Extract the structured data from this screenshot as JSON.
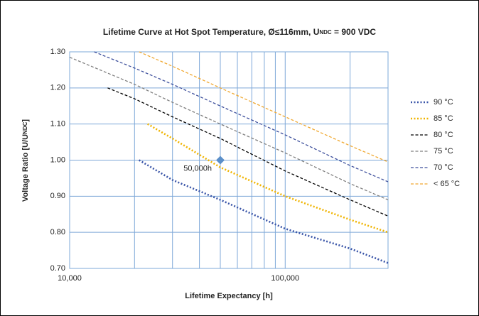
{
  "chart_data": {
    "type": "line",
    "title": {
      "text": "Lifetime Curve at Hot Spot Temperature, Ø≤116mm, U",
      "sub": "NDC",
      "tail": " = 900 VDC"
    },
    "y_label": {
      "text": "Voltage Ratio [U/U",
      "sub": "NDC",
      "tail": "]"
    },
    "x_label": "Lifetime Expectancy  [h]",
    "xlog": true,
    "xlim": [
      10000,
      300000
    ],
    "xticks": [
      {
        "value": 10000,
        "label": "10,000"
      },
      {
        "value": 100000,
        "label": "100,000"
      }
    ],
    "xgrid": [
      20000,
      30000,
      40000,
      50000,
      60000,
      70000,
      80000,
      90000,
      200000
    ],
    "ylim": [
      0.7,
      1.3
    ],
    "yticks": [
      {
        "value": 0.7,
        "label": "0.70"
      },
      {
        "value": 0.8,
        "label": "0.80"
      },
      {
        "value": 0.9,
        "label": "0.90"
      },
      {
        "value": 1.0,
        "label": "1.00"
      },
      {
        "value": 1.1,
        "label": "1.10"
      },
      {
        "value": 1.2,
        "label": "1.20"
      },
      {
        "value": 1.3,
        "label": "1.30"
      }
    ],
    "grid": true,
    "legend": "right",
    "series": [
      {
        "name": "90 °C",
        "color": "#3a55a8",
        "dash": "dotted",
        "x": [
          21000,
          30000,
          50000,
          100000,
          200000,
          300000
        ],
        "values": [
          1.0,
          0.945,
          0.89,
          0.81,
          0.755,
          0.715
        ]
      },
      {
        "name": "85 °C",
        "color": "#f0b400",
        "dash": "dotted",
        "x": [
          23000,
          30000,
          50000,
          100000,
          200000,
          300000
        ],
        "values": [
          1.1,
          1.06,
          0.98,
          0.9,
          0.835,
          0.8
        ]
      },
      {
        "name": "80 °C",
        "color": "#000000",
        "dash": "dashed",
        "x": [
          15000,
          20000,
          30000,
          50000,
          100000,
          200000,
          300000
        ],
        "values": [
          1.2,
          1.17,
          1.12,
          1.06,
          0.97,
          0.89,
          0.845
        ]
      },
      {
        "name": "75 °C",
        "color": "#808080",
        "dash": "dashed",
        "x": [
          10000,
          20000,
          30000,
          50000,
          100000,
          200000,
          300000
        ],
        "values": [
          1.285,
          1.21,
          1.16,
          1.1,
          1.02,
          0.935,
          0.89
        ]
      },
      {
        "name": "70 °C",
        "color": "#3d4f9c",
        "dash": "dashed",
        "x": [
          13000,
          20000,
          30000,
          50000,
          100000,
          200000,
          300000
        ],
        "values": [
          1.3,
          1.255,
          1.21,
          1.15,
          1.07,
          0.985,
          0.94
        ]
      },
      {
        "name": "< 65 °C",
        "color": "#f0a830",
        "dash": "dashed",
        "x": [
          21000,
          30000,
          50000,
          100000,
          200000,
          300000
        ],
        "values": [
          1.3,
          1.26,
          1.2,
          1.12,
          1.04,
          0.995
        ]
      }
    ],
    "annotation": {
      "text": "50,000h",
      "x": 50000,
      "y": 1.0,
      "color": "#5b8fc9"
    }
  }
}
